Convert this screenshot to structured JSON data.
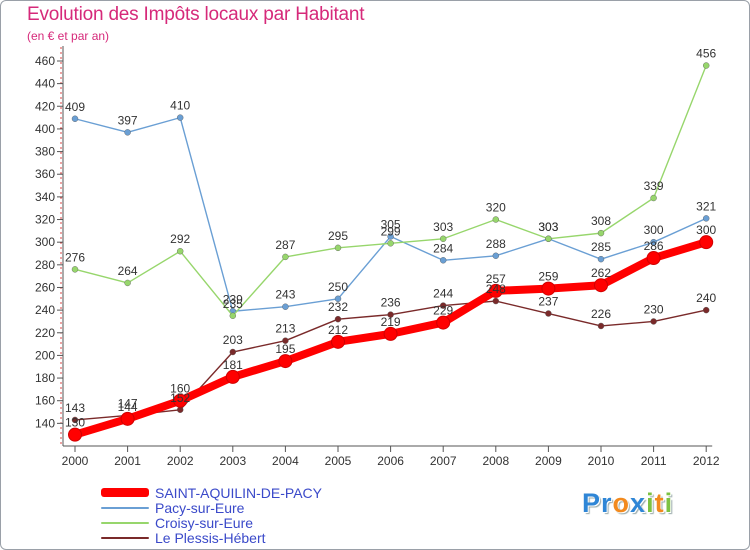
{
  "chart_data": {
    "type": "line",
    "title": "Evolution des Impôts locaux par Habitant",
    "subtitle": "(en € et par an)",
    "x": [
      "2000",
      "2001",
      "2002",
      "2003",
      "2004",
      "2005",
      "2006",
      "2007",
      "2008",
      "2009",
      "2010",
      "2011",
      "2012"
    ],
    "ylim": [
      120,
      460
    ],
    "yticks": [
      "140",
      "160",
      "180",
      "200",
      "220",
      "240",
      "260",
      "280",
      "300",
      "320",
      "340",
      "360",
      "380",
      "400",
      "420",
      "440",
      "460"
    ],
    "grid": false,
    "legend_position": "bottom-left",
    "series": [
      {
        "name": "SAINT-AQUILIN-DE-PACY",
        "color": "#ff0000",
        "values": [
          130,
          144,
          160,
          181,
          195,
          212,
          219,
          229,
          257,
          259,
          262,
          286,
          300
        ],
        "labels": [
          "130",
          "144",
          "160",
          "181",
          "195",
          "212",
          "219",
          "229",
          "257",
          "259",
          "262",
          "286",
          "300"
        ]
      },
      {
        "name": "Pacy-sur-Eure",
        "color": "#6a9fd4",
        "values": [
          409,
          397,
          410,
          239,
          243,
          250,
          305,
          284,
          288,
          303,
          285,
          300,
          321
        ],
        "labels": [
          "409",
          "397",
          "410",
          "239",
          "243",
          "250",
          "305",
          "284",
          "288",
          "303",
          "285",
          "300",
          "321"
        ]
      },
      {
        "name": "Croisy-sur-Eure",
        "color": "#97d66c",
        "values": [
          276,
          264,
          292,
          235,
          287,
          295,
          299,
          303,
          320,
          303,
          308,
          339,
          456
        ],
        "labels": [
          "276",
          "264",
          "292",
          "235",
          "287",
          "295",
          "299",
          "303",
          "320",
          "303",
          "308",
          "339",
          "456"
        ]
      },
      {
        "name": "Le Plessis-Hébert",
        "color": "#7a2a2a",
        "values": [
          143,
          147,
          152,
          203,
          213,
          232,
          236,
          244,
          248,
          237,
          226,
          230,
          240
        ],
        "labels": [
          "143",
          "147",
          "152",
          "203",
          "213",
          "232",
          "236",
          "244",
          "248",
          "237",
          "226",
          "230",
          "240"
        ]
      }
    ]
  },
  "brand": {
    "letters": [
      {
        "ch": "P",
        "color": "#2f86d6"
      },
      {
        "ch": "r",
        "color": "#2f86d6"
      },
      {
        "ch": "o",
        "color": "#f28a1e"
      },
      {
        "ch": "x",
        "color": "#2f86d6"
      },
      {
        "ch": "i",
        "color": "#7cc242"
      },
      {
        "ch": "t",
        "color": "#f28a1e"
      },
      {
        "ch": "i",
        "color": "#7cc242"
      }
    ]
  }
}
